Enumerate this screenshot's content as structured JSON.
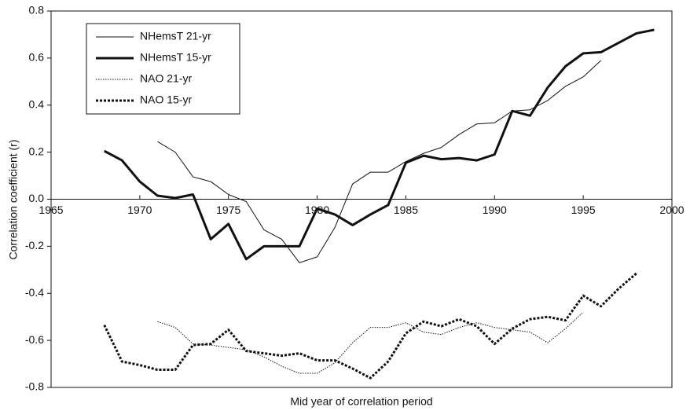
{
  "chart_data": {
    "type": "line",
    "x_label": "Mid year of correlation period",
    "y_label": "Correlation coefficient (r)",
    "x": [
      1968,
      1969,
      1970,
      1971,
      1972,
      1973,
      1974,
      1975,
      1976,
      1977,
      1978,
      1979,
      1980,
      1981,
      1982,
      1983,
      1984,
      1985,
      1986,
      1987,
      1988,
      1989,
      1990,
      1991,
      1992,
      1993,
      1994,
      1995,
      1996,
      1997,
      1998,
      1999
    ],
    "xlim": [
      1965,
      2000
    ],
    "xticks": [
      1965,
      1970,
      1975,
      1980,
      1985,
      1990,
      1995,
      2000
    ],
    "ylim": [
      -0.8,
      0.8
    ],
    "yticks": [
      -0.8,
      -0.6,
      -0.4,
      -0.2,
      {
        "value": 0,
        "label": "0.0"
      },
      0.2,
      0.4,
      0.6,
      0.8
    ],
    "legend": "upper left",
    "series": [
      {
        "name": "NHemsT 21-yr",
        "color": "#111111",
        "line_width": 1,
        "dash": "solid",
        "values": [
          null,
          null,
          null,
          0.245,
          0.2,
          0.095,
          0.075,
          0.02,
          -0.01,
          -0.13,
          -0.17,
          -0.27,
          -0.245,
          -0.12,
          0.065,
          0.115,
          0.115,
          0.16,
          0.195,
          0.22,
          0.275,
          0.32,
          0.325,
          0.375,
          0.38,
          0.42,
          0.48,
          0.52,
          0.59,
          null,
          null,
          null
        ]
      },
      {
        "name": "NHemsT 15-yr",
        "color": "#111111",
        "line_width": 3,
        "dash": "solid",
        "values": [
          0.205,
          0.165,
          0.075,
          0.015,
          0.005,
          0.02,
          -0.17,
          -0.105,
          -0.255,
          -0.2,
          -0.2,
          -0.2,
          -0.04,
          -0.065,
          -0.11,
          -0.065,
          -0.025,
          0.155,
          0.185,
          0.17,
          0.175,
          0.165,
          0.19,
          0.375,
          0.355,
          0.475,
          0.565,
          0.62,
          0.625,
          0.665,
          0.705,
          0.72
        ]
      },
      {
        "name": "NAO 21-yr",
        "color": "#111111",
        "line_width": 1,
        "dash": "dotted",
        "values": [
          null,
          null,
          null,
          -0.52,
          -0.545,
          -0.615,
          -0.62,
          -0.63,
          -0.64,
          -0.67,
          -0.71,
          -0.74,
          -0.74,
          -0.695,
          -0.61,
          -0.545,
          -0.545,
          -0.525,
          -0.565,
          -0.575,
          -0.545,
          -0.525,
          -0.545,
          -0.555,
          -0.565,
          -0.61,
          -0.55,
          -0.48,
          null,
          null,
          null,
          null
        ]
      },
      {
        "name": "NAO 15-yr",
        "color": "#111111",
        "line_width": 3,
        "dash": "dotted",
        "values": [
          -0.535,
          -0.69,
          -0.705,
          -0.725,
          -0.725,
          -0.62,
          -0.615,
          -0.555,
          -0.645,
          -0.655,
          -0.665,
          -0.655,
          -0.685,
          -0.685,
          -0.72,
          -0.76,
          -0.69,
          -0.57,
          -0.52,
          -0.54,
          -0.51,
          -0.54,
          -0.615,
          -0.55,
          -0.51,
          -0.5,
          -0.515,
          -0.41,
          -0.455,
          -0.38,
          -0.315,
          null
        ]
      }
    ]
  }
}
